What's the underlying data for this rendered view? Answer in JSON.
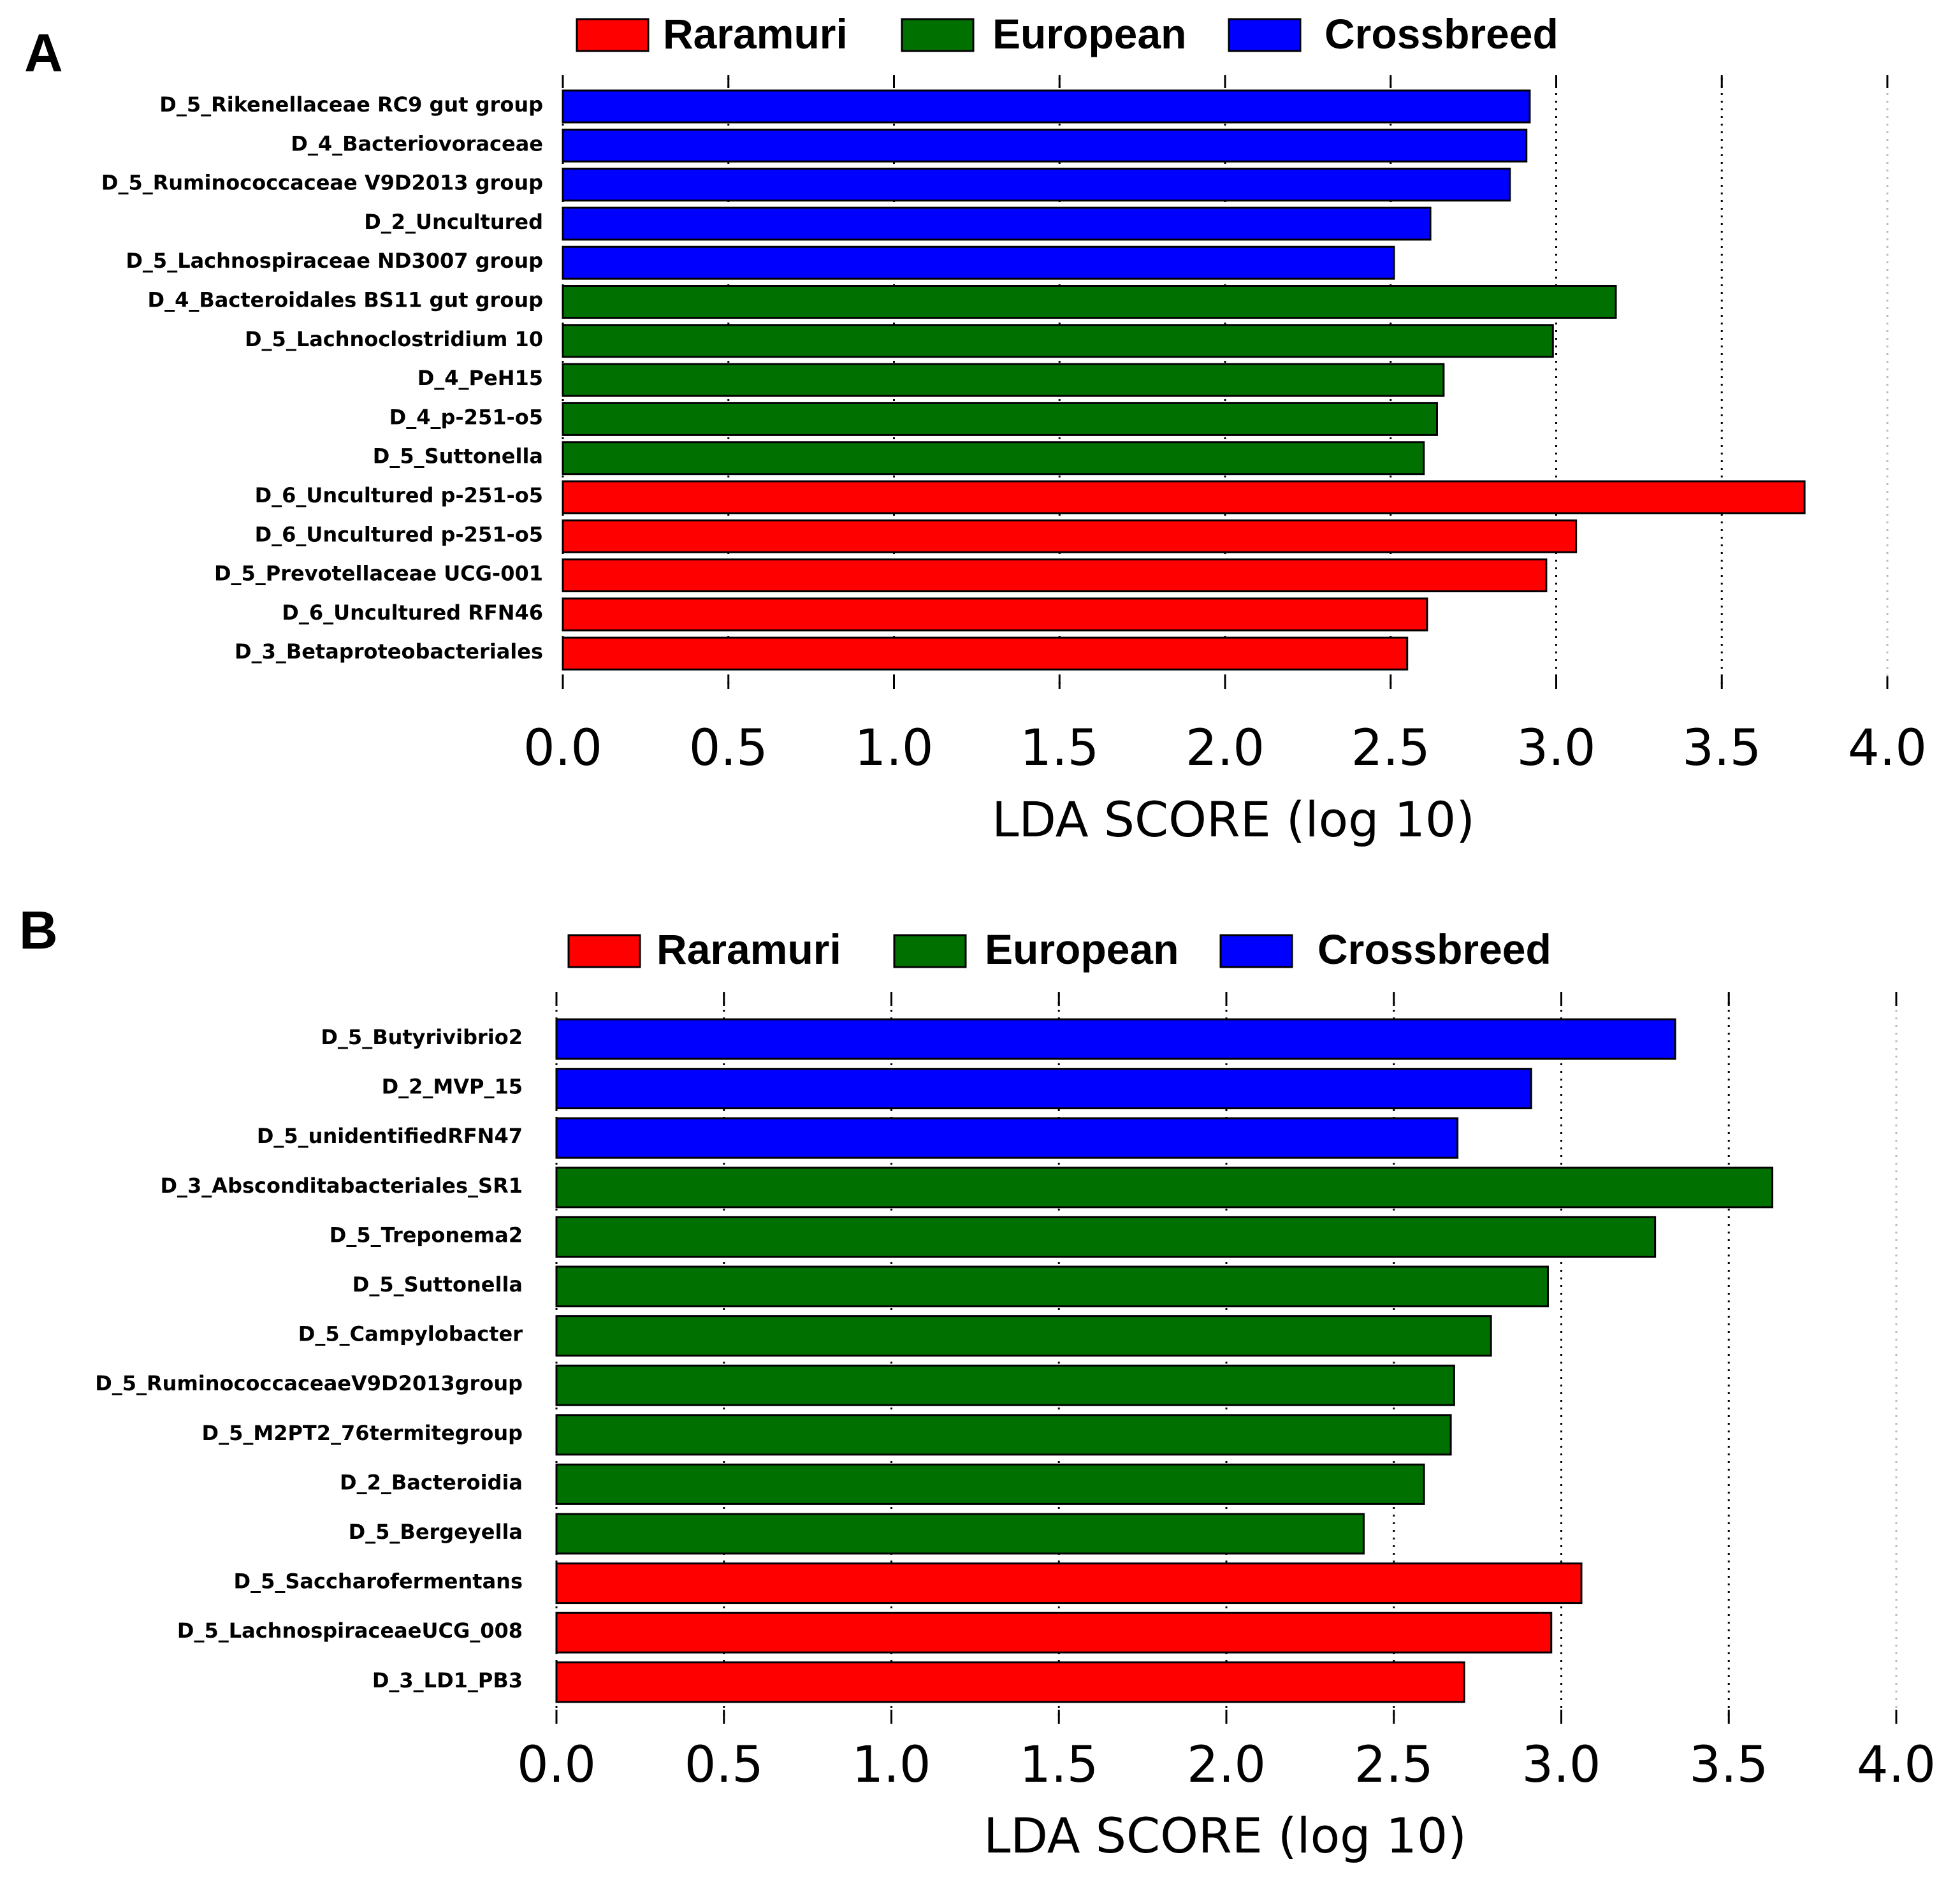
{
  "colors": {
    "Raramuri": "#ff0000",
    "European": "#007000",
    "Crossbreed": "#0000ff",
    "bar_stroke": "#000000",
    "grid": "#000000",
    "grid_last": "#bbbbbb"
  },
  "legend": [
    "Raramuri",
    "European",
    "Crossbreed"
  ],
  "chart_data": [
    {
      "panel": "A",
      "type": "bar",
      "orientation": "horizontal",
      "xlabel": "LDA SCORE (log 10)",
      "xlim": [
        0,
        4.0
      ],
      "xticks": [
        "0.0",
        "0.5",
        "1.0",
        "1.5",
        "2.0",
        "2.5",
        "3.0",
        "3.5",
        "4.0"
      ],
      "grid": "vertical dotted",
      "legend_position": "top",
      "categories": [
        "D_5_Rikenellaceae RC9 gut group",
        "D_4_Bacteriovoraceae",
        "D_5_Ruminococcaceae V9D2013 group",
        "D_2_Uncultured",
        "D_5_Lachnospiraceae ND3007 group",
        "D_4_Bacteroidales BS11 gut group",
        "D_5_Lachnoclostridium 10",
        "D_4_PeH15",
        "D_4_p-251-o5",
        "D_5_Suttonella",
        "D_6_Uncultured p-251-o5",
        "D_6_Uncultured p-251-o5",
        "D_5_Prevotellaceae UCG-001",
        "D_6_Uncultured RFN46",
        "D_3_Betaproteobacteriales"
      ],
      "values": [
        2.92,
        2.91,
        2.86,
        2.62,
        2.51,
        3.18,
        2.99,
        2.66,
        2.64,
        2.6,
        3.75,
        3.06,
        2.97,
        2.61,
        2.55
      ],
      "groups": [
        "Crossbreed",
        "Crossbreed",
        "Crossbreed",
        "Crossbreed",
        "Crossbreed",
        "European",
        "European",
        "European",
        "European",
        "European",
        "Raramuri",
        "Raramuri",
        "Raramuri",
        "Raramuri",
        "Raramuri"
      ]
    },
    {
      "panel": "B",
      "type": "bar",
      "orientation": "horizontal",
      "xlabel": "LDA SCORE (log 10)",
      "xlim": [
        0,
        4.0
      ],
      "xticks": [
        "0.0",
        "0.5",
        "1.0",
        "1.5",
        "2.0",
        "2.5",
        "3.0",
        "3.5",
        "4.0"
      ],
      "grid": "vertical dotted",
      "legend_position": "top",
      "categories": [
        "D_5_Butyrivibrio2",
        "D_2_MVP_15",
        "D_5_unidentifiedRFN47",
        "D_3_Absconditabacteriales_SR1",
        "D_5_Treponema2",
        "D_5_Suttonella",
        "D_5_Campylobacter",
        "D_5_RuminococcaceaeV9D2013group",
        "D_5_M2PT2_76termitegroup",
        "D_2_Bacteroidia",
        "D_5_Bergeyella",
        "D_5_Saccharofermentans",
        "D_5_LachnospiraceaeUCG_008",
        "D_3_LD1_PB3"
      ],
      "values": [
        3.34,
        2.91,
        2.69,
        3.63,
        3.28,
        2.96,
        2.79,
        2.68,
        2.67,
        2.59,
        2.41,
        3.06,
        2.97,
        2.71
      ],
      "groups": [
        "Crossbreed",
        "Crossbreed",
        "Crossbreed",
        "European",
        "European",
        "European",
        "European",
        "European",
        "European",
        "European",
        "European",
        "Raramuri",
        "Raramuri",
        "Raramuri"
      ]
    }
  ]
}
